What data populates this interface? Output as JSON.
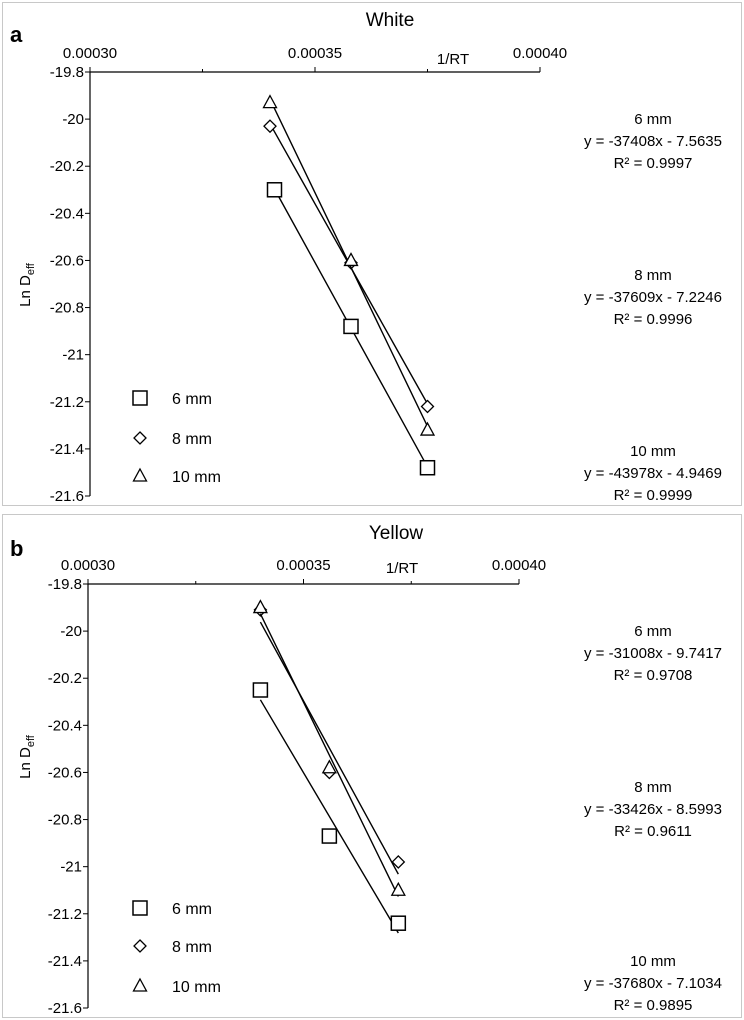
{
  "chart_data": [
    {
      "panel_label": "a",
      "type": "scatter",
      "title": "White",
      "xlabel": "1/RT",
      "ylabel_main": "Ln D",
      "ylabel_sub": "eff",
      "x_ticks": [
        "0.00030",
        "0.00035",
        "0.00040"
      ],
      "x_tick_values": [
        0.0003,
        0.00035,
        0.0004
      ],
      "y_ticks": [
        "-19.8",
        "-20",
        "-20.2",
        "-20.4",
        "-20.6",
        "-20.8",
        "-21",
        "-21.2",
        "-21.4",
        "-21.6"
      ],
      "y_tick_values": [
        -19.8,
        -20,
        -20.2,
        -20.4,
        -20.6,
        -20.8,
        -21,
        -21.2,
        -21.4,
        -21.6
      ],
      "xlim": [
        0.0003,
        0.0004
      ],
      "ylim": [
        -21.6,
        -19.8
      ],
      "x_axis_position": "top",
      "grid": false,
      "legend_position": "bottom-left",
      "series": [
        {
          "name": "6 mm",
          "marker": "square",
          "points": [
            [
              0.000341,
              -20.3
            ],
            [
              0.000358,
              -20.88
            ],
            [
              0.000375,
              -21.48
            ]
          ],
          "trendline": {
            "equation": "y = -37408x - 7.5635",
            "r2": "R² = 0.9997",
            "x_from": 0.000341,
            "x_to": 0.000375
          }
        },
        {
          "name": "8 mm",
          "marker": "diamond",
          "points": [
            [
              0.00034,
              -20.03
            ],
            [
              0.000358,
              -20.61
            ],
            [
              0.000375,
              -21.22
            ]
          ],
          "trendline": {
            "equation": "y = -37609x - 7.2246",
            "r2": "R² = 0.9996",
            "x_from": 0.00034,
            "x_to": 0.000375
          }
        },
        {
          "name": "10 mm",
          "marker": "triangle",
          "points": [
            [
              0.00034,
              -19.93
            ],
            [
              0.000358,
              -20.6
            ],
            [
              0.000375,
              -21.32
            ]
          ],
          "trendline": {
            "equation": "y = -43978x - 4.9469",
            "r2": "R² = 0.9999",
            "x_from": 0.00034,
            "x_to": 0.000375
          }
        }
      ]
    },
    {
      "panel_label": "b",
      "type": "scatter",
      "title": "Yellow",
      "xlabel": "1/RT",
      "ylabel_main": "Ln D",
      "ylabel_sub": "eff",
      "x_ticks": [
        "0.00030",
        "0.00035",
        "0.00040"
      ],
      "x_tick_values": [
        0.0003,
        0.00035,
        0.0004
      ],
      "y_ticks": [
        "-19.8",
        "-20",
        "-20.2",
        "-20.4",
        "-20.6",
        "-20.8",
        "-21",
        "-21.2",
        "-21.4",
        "-21.6"
      ],
      "y_tick_values": [
        -19.8,
        -20,
        -20.2,
        -20.4,
        -20.6,
        -20.8,
        -21,
        -21.2,
        -21.4,
        -21.6
      ],
      "xlim": [
        0.0003,
        0.0004
      ],
      "ylim": [
        -21.6,
        -19.8
      ],
      "x_axis_position": "top",
      "grid": false,
      "legend_position": "bottom-left",
      "series": [
        {
          "name": "6 mm",
          "marker": "square",
          "points": [
            [
              0.00034,
              -20.25
            ],
            [
              0.000356,
              -20.87
            ],
            [
              0.000372,
              -21.24
            ]
          ],
          "trendline": {
            "equation": "y = -31008x - 9.7417",
            "r2": "R² = 0.9708",
            "x_from": 0.00034,
            "x_to": 0.000372
          }
        },
        {
          "name": "8 mm",
          "marker": "diamond",
          "points": [
            [
              0.00034,
              -19.91
            ],
            [
              0.000356,
              -20.6
            ],
            [
              0.000372,
              -20.98
            ]
          ],
          "trendline": {
            "equation": "y = -33426x - 8.5993",
            "r2": "R² = 0.9611",
            "x_from": 0.00034,
            "x_to": 0.000372
          }
        },
        {
          "name": "10 mm",
          "marker": "triangle",
          "points": [
            [
              0.00034,
              -19.9
            ],
            [
              0.000356,
              -20.58
            ],
            [
              0.000372,
              -21.1
            ]
          ],
          "trendline": {
            "equation": "y = -37680x - 7.1034",
            "r2": "R² = 0.9895",
            "x_from": 0.00034,
            "x_to": 0.000372
          }
        }
      ]
    }
  ]
}
